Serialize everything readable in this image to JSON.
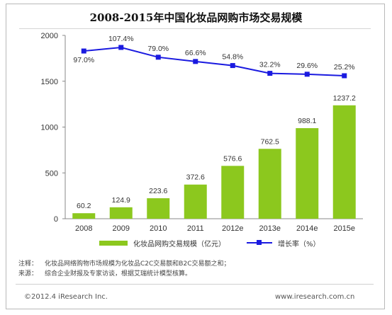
{
  "chart_data": {
    "type": "bar+line",
    "title": "2008-2015年中国化妆品网购市场交易规模",
    "categories": [
      "2008",
      "2009",
      "2010",
      "2011",
      "2012e",
      "2013e",
      "2014e",
      "2015e"
    ],
    "series": [
      {
        "name": "化妆品网购交易规模（亿元）",
        "type": "bar",
        "values": [
          60.2,
          124.9,
          223.6,
          372.6,
          576.6,
          762.5,
          988.1,
          1237.2
        ],
        "labels": [
          "60.2",
          "124.9",
          "223.6",
          "372.6",
          "576.6",
          "762.5",
          "988.1",
          "1237.2"
        ]
      },
      {
        "name": "增长率（%）",
        "type": "line",
        "values": [
          97.0,
          107.4,
          79.0,
          66.6,
          54.8,
          32.2,
          29.6,
          25.2
        ],
        "labels": [
          "97.0%",
          "107.4%",
          "79.0%",
          "66.6%",
          "54.8%",
          "32.2%",
          "29.6%",
          "25.2%"
        ]
      }
    ],
    "ylim": [
      0,
      2000
    ],
    "yticks": [
      "0",
      "500",
      "1000",
      "1500",
      "2000"
    ],
    "colors": {
      "bar": "#8cc81e",
      "line": "#1a1ae0",
      "axis": "#888888"
    },
    "legend_position": "bottom",
    "grid": false
  },
  "notes": [
    {
      "label": "注释：",
      "text": "化妆品网络购物市场规模为化妆品C2C交易额和B2C交易额之和；"
    },
    {
      "label": "来源：",
      "text": "综合企业财报及专家访谈，根据艾瑞统计模型核算。"
    }
  ],
  "footer": {
    "left": "©2012.4 iResearch Inc.",
    "right": "www.iresearch.com.cn"
  }
}
